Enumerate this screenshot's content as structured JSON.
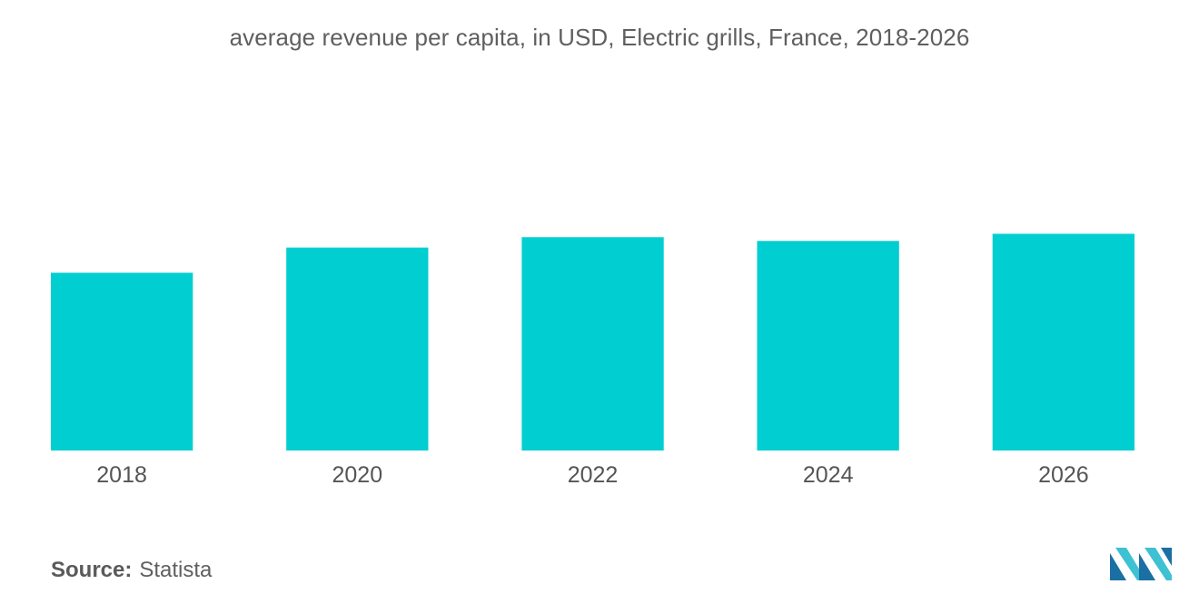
{
  "title": "average revenue per capita, in USD, Electric grills, France, 2018-2026",
  "source": {
    "label": "Source:",
    "value": "Statista"
  },
  "logo": {
    "name": "mordor-intelligence-logo",
    "colors": [
      "#1a6fa3",
      "#3ec1d3"
    ]
  },
  "colors": {
    "bar": "#00ced1",
    "text": "#555555"
  },
  "chart_data": {
    "type": "bar",
    "categories": [
      "2018",
      "2020",
      "2022",
      "2024",
      "2026"
    ],
    "values": [
      51.5,
      58.8,
      61.8,
      60.7,
      62.8
    ],
    "title": "average revenue per capita, in USD, Electric grills, France, 2018-2026",
    "xlabel": "",
    "ylabel": "",
    "ylim": [
      0,
      100
    ],
    "grid": false,
    "legend": "none"
  }
}
